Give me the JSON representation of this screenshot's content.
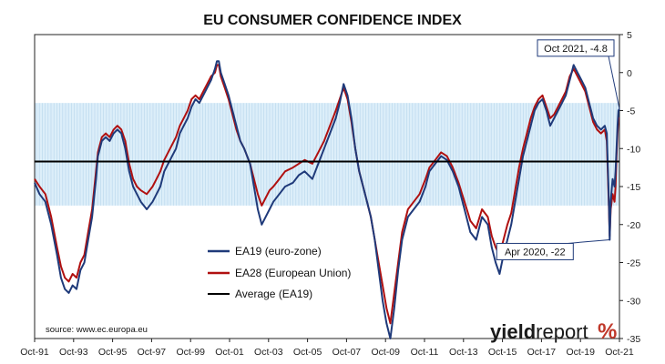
{
  "chart_data": {
    "type": "line",
    "title": "EU CONSUMER CONFIDENCE INDEX",
    "x_tick_labels": [
      "Oct-91",
      "Oct-93",
      "Oct-95",
      "Oct-97",
      "Oct-99",
      "Oct-01",
      "Oct-03",
      "Oct-05",
      "Oct-07",
      "Oct-09",
      "Oct-11",
      "Oct-13",
      "Oct-15",
      "Oct-17",
      "Oct-19",
      "Oct-21"
    ],
    "xlim": [
      1991.75,
      2021.75
    ],
    "ylim": [
      -35,
      5
    ],
    "y_ticks": [
      5,
      0,
      -5,
      -10,
      -15,
      -20,
      -25,
      -30,
      -35
    ],
    "y_axis_side": "right",
    "band": {
      "from": -17.5,
      "to": -4.0,
      "color": "#dceef9"
    },
    "average": {
      "name": "Average (EA19)",
      "value": -11.7,
      "color": "#000000"
    },
    "series": [
      {
        "name": "EA19 (euro-zone)",
        "color": "#1f3a7a",
        "points": [
          [
            1991.75,
            -14.5
          ],
          [
            1992.0,
            -16
          ],
          [
            1992.3,
            -17
          ],
          [
            1992.6,
            -20
          ],
          [
            1992.9,
            -24
          ],
          [
            1993.1,
            -27
          ],
          [
            1993.3,
            -28.5
          ],
          [
            1993.5,
            -29
          ],
          [
            1993.7,
            -28
          ],
          [
            1993.9,
            -28.5
          ],
          [
            1994.1,
            -26
          ],
          [
            1994.3,
            -25
          ],
          [
            1994.5,
            -22
          ],
          [
            1994.7,
            -19
          ],
          [
            1994.9,
            -14
          ],
          [
            1995.0,
            -11
          ],
          [
            1995.2,
            -9
          ],
          [
            1995.4,
            -8.5
          ],
          [
            1995.6,
            -9
          ],
          [
            1995.8,
            -8
          ],
          [
            1996.0,
            -7.5
          ],
          [
            1996.2,
            -8
          ],
          [
            1996.4,
            -10
          ],
          [
            1996.6,
            -13
          ],
          [
            1996.8,
            -15
          ],
          [
            1997.0,
            -16
          ],
          [
            1997.2,
            -17
          ],
          [
            1997.5,
            -18
          ],
          [
            1997.8,
            -17
          ],
          [
            1998.0,
            -16
          ],
          [
            1998.2,
            -15
          ],
          [
            1998.4,
            -13
          ],
          [
            1998.6,
            -12
          ],
          [
            1998.8,
            -11
          ],
          [
            1999.0,
            -10
          ],
          [
            1999.2,
            -8
          ],
          [
            1999.4,
            -7
          ],
          [
            1999.6,
            -6
          ],
          [
            1999.8,
            -4.5
          ],
          [
            2000.0,
            -3.5
          ],
          [
            2000.2,
            -4
          ],
          [
            2000.4,
            -3
          ],
          [
            2000.6,
            -2
          ],
          [
            2000.8,
            -1
          ],
          [
            2001.0,
            0.5
          ],
          [
            2001.1,
            1.5
          ],
          [
            2001.2,
            1.5
          ],
          [
            2001.3,
            0
          ],
          [
            2001.5,
            -1.5
          ],
          [
            2001.7,
            -3
          ],
          [
            2001.9,
            -5
          ],
          [
            2002.1,
            -7
          ],
          [
            2002.3,
            -9
          ],
          [
            2002.5,
            -10
          ],
          [
            2002.8,
            -12
          ],
          [
            2003.0,
            -15
          ],
          [
            2003.2,
            -18
          ],
          [
            2003.4,
            -20
          ],
          [
            2003.6,
            -19
          ],
          [
            2003.8,
            -18
          ],
          [
            2004.0,
            -17
          ],
          [
            2004.3,
            -16
          ],
          [
            2004.6,
            -15
          ],
          [
            2005.0,
            -14.5
          ],
          [
            2005.3,
            -13.5
          ],
          [
            2005.6,
            -13
          ],
          [
            2006.0,
            -14
          ],
          [
            2006.3,
            -12
          ],
          [
            2006.6,
            -10
          ],
          [
            2006.9,
            -8
          ],
          [
            2007.2,
            -6
          ],
          [
            2007.4,
            -4
          ],
          [
            2007.6,
            -1.5
          ],
          [
            2007.8,
            -3
          ],
          [
            2008.0,
            -6
          ],
          [
            2008.2,
            -10
          ],
          [
            2008.4,
            -13
          ],
          [
            2008.6,
            -15
          ],
          [
            2008.8,
            -17
          ],
          [
            2009.0,
            -19
          ],
          [
            2009.2,
            -22
          ],
          [
            2009.4,
            -26
          ],
          [
            2009.6,
            -30
          ],
          [
            2009.8,
            -33
          ],
          [
            2010.0,
            -35
          ],
          [
            2010.2,
            -31
          ],
          [
            2010.4,
            -26
          ],
          [
            2010.6,
            -22
          ],
          [
            2010.9,
            -19
          ],
          [
            2011.2,
            -18
          ],
          [
            2011.5,
            -17
          ],
          [
            2011.8,
            -15
          ],
          [
            2012.0,
            -13
          ],
          [
            2012.3,
            -12
          ],
          [
            2012.6,
            -11
          ],
          [
            2012.9,
            -11.5
          ],
          [
            2013.2,
            -13
          ],
          [
            2013.5,
            -15
          ],
          [
            2013.8,
            -18
          ],
          [
            2014.1,
            -21
          ],
          [
            2014.4,
            -22
          ],
          [
            2014.7,
            -19
          ],
          [
            2015.0,
            -20
          ],
          [
            2015.2,
            -23
          ],
          [
            2015.4,
            -25
          ],
          [
            2015.6,
            -26.5
          ],
          [
            2015.8,
            -24
          ],
          [
            2016.0,
            -22
          ],
          [
            2016.2,
            -20
          ],
          [
            2016.4,
            -17
          ],
          [
            2016.6,
            -14
          ],
          [
            2016.8,
            -11
          ],
          [
            2017.0,
            -9
          ],
          [
            2017.2,
            -7
          ],
          [
            2017.4,
            -5
          ],
          [
            2017.6,
            -4
          ],
          [
            2017.8,
            -3.5
          ],
          [
            2018.0,
            -5
          ],
          [
            2018.2,
            -7
          ],
          [
            2018.4,
            -6
          ],
          [
            2018.6,
            -5
          ],
          [
            2018.8,
            -4
          ],
          [
            2019.0,
            -3
          ],
          [
            2019.2,
            -1
          ],
          [
            2019.4,
            1
          ],
          [
            2019.6,
            0
          ],
          [
            2019.8,
            -1
          ],
          [
            2020.0,
            -2
          ],
          [
            2020.2,
            -4
          ],
          [
            2020.4,
            -6
          ],
          [
            2020.6,
            -7
          ],
          [
            2020.8,
            -7.5
          ],
          [
            2021.0,
            -7
          ],
          [
            2021.1,
            -8
          ],
          [
            2021.2,
            -16
          ],
          [
            2021.25,
            -22
          ],
          [
            2021.3,
            -17
          ],
          [
            2021.4,
            -14
          ],
          [
            2021.5,
            -15
          ],
          [
            2021.55,
            -13
          ],
          [
            2021.6,
            -10
          ],
          [
            2021.65,
            -7
          ],
          [
            2021.7,
            -5
          ],
          [
            2021.75,
            -4.8
          ]
        ]
      },
      {
        "name": "EA28 (European Union)",
        "color": "#b01010",
        "points": [
          [
            1991.75,
            -14
          ],
          [
            1992.0,
            -15
          ],
          [
            1992.3,
            -16
          ],
          [
            1992.6,
            -19
          ],
          [
            1992.9,
            -23
          ],
          [
            1993.1,
            -25.5
          ],
          [
            1993.3,
            -27
          ],
          [
            1993.5,
            -27.5
          ],
          [
            1993.7,
            -26.5
          ],
          [
            1993.9,
            -27
          ],
          [
            1994.1,
            -25
          ],
          [
            1994.3,
            -24
          ],
          [
            1994.5,
            -21
          ],
          [
            1994.7,
            -18
          ],
          [
            1994.9,
            -13
          ],
          [
            1995.0,
            -10.5
          ],
          [
            1995.2,
            -8.5
          ],
          [
            1995.4,
            -8
          ],
          [
            1995.6,
            -8.5
          ],
          [
            1995.8,
            -7.5
          ],
          [
            1996.0,
            -7
          ],
          [
            1996.2,
            -7.5
          ],
          [
            1996.4,
            -9
          ],
          [
            1996.6,
            -12
          ],
          [
            1996.8,
            -14
          ],
          [
            1997.0,
            -15
          ],
          [
            1997.2,
            -15.5
          ],
          [
            1997.5,
            -16
          ],
          [
            1997.8,
            -15
          ],
          [
            1998.0,
            -14
          ],
          [
            1998.2,
            -13
          ],
          [
            1998.4,
            -11.5
          ],
          [
            1998.6,
            -10.5
          ],
          [
            1998.8,
            -9.5
          ],
          [
            1999.0,
            -8.5
          ],
          [
            1999.2,
            -7
          ],
          [
            1999.4,
            -6
          ],
          [
            1999.6,
            -5
          ],
          [
            1999.8,
            -3.5
          ],
          [
            2000.0,
            -3
          ],
          [
            2000.2,
            -3.5
          ],
          [
            2000.4,
            -2.5
          ],
          [
            2000.6,
            -1.5
          ],
          [
            2000.8,
            -0.5
          ],
          [
            2001.0,
            0
          ],
          [
            2001.1,
            1
          ],
          [
            2001.2,
            1
          ],
          [
            2001.3,
            -0.5
          ],
          [
            2001.5,
            -2
          ],
          [
            2001.7,
            -3.5
          ],
          [
            2001.9,
            -5.5
          ],
          [
            2002.1,
            -7.5
          ],
          [
            2002.3,
            -9
          ],
          [
            2002.5,
            -10
          ],
          [
            2002.8,
            -12
          ],
          [
            2003.0,
            -14
          ],
          [
            2003.2,
            -16
          ],
          [
            2003.4,
            -17.5
          ],
          [
            2003.6,
            -16.5
          ],
          [
            2003.8,
            -15.5
          ],
          [
            2004.0,
            -15
          ],
          [
            2004.3,
            -14
          ],
          [
            2004.6,
            -13
          ],
          [
            2005.0,
            -12.5
          ],
          [
            2005.3,
            -12
          ],
          [
            2005.6,
            -11.5
          ],
          [
            2006.0,
            -12
          ],
          [
            2006.3,
            -10.5
          ],
          [
            2006.6,
            -9
          ],
          [
            2006.9,
            -7
          ],
          [
            2007.2,
            -5
          ],
          [
            2007.4,
            -3.5
          ],
          [
            2007.6,
            -2
          ],
          [
            2007.8,
            -3.5
          ],
          [
            2008.0,
            -6.5
          ],
          [
            2008.2,
            -10
          ],
          [
            2008.4,
            -13
          ],
          [
            2008.6,
            -15
          ],
          [
            2008.8,
            -17
          ],
          [
            2009.0,
            -19
          ],
          [
            2009.2,
            -22
          ],
          [
            2009.4,
            -25
          ],
          [
            2009.6,
            -28
          ],
          [
            2009.8,
            -31
          ],
          [
            2010.0,
            -33
          ],
          [
            2010.2,
            -29
          ],
          [
            2010.4,
            -25
          ],
          [
            2010.6,
            -21
          ],
          [
            2010.9,
            -18
          ],
          [
            2011.2,
            -17
          ],
          [
            2011.5,
            -16
          ],
          [
            2011.8,
            -14
          ],
          [
            2012.0,
            -12.5
          ],
          [
            2012.3,
            -11.5
          ],
          [
            2012.6,
            -10.5
          ],
          [
            2012.9,
            -11
          ],
          [
            2013.2,
            -12.5
          ],
          [
            2013.5,
            -14.5
          ],
          [
            2013.8,
            -17
          ],
          [
            2014.1,
            -19.5
          ],
          [
            2014.4,
            -20.5
          ],
          [
            2014.7,
            -18
          ],
          [
            2015.0,
            -19
          ],
          [
            2015.2,
            -21.5
          ],
          [
            2015.4,
            -23
          ],
          [
            2015.6,
            -24
          ],
          [
            2015.8,
            -22
          ],
          [
            2016.0,
            -20
          ],
          [
            2016.2,
            -18.5
          ],
          [
            2016.4,
            -15.5
          ],
          [
            2016.6,
            -12.5
          ],
          [
            2016.8,
            -10
          ],
          [
            2017.0,
            -8
          ],
          [
            2017.2,
            -6
          ],
          [
            2017.4,
            -4.5
          ],
          [
            2017.6,
            -3.5
          ],
          [
            2017.8,
            -3
          ],
          [
            2018.0,
            -4.5
          ],
          [
            2018.2,
            -6
          ],
          [
            2018.4,
            -5.5
          ],
          [
            2018.6,
            -4.5
          ],
          [
            2018.8,
            -3.5
          ],
          [
            2019.0,
            -2.5
          ],
          [
            2019.2,
            -0.5
          ],
          [
            2019.4,
            0.5
          ],
          [
            2019.6,
            -0.5
          ],
          [
            2019.8,
            -1.5
          ],
          [
            2020.0,
            -2.5
          ],
          [
            2020.2,
            -4.5
          ],
          [
            2020.4,
            -6.5
          ],
          [
            2020.6,
            -7.5
          ],
          [
            2020.8,
            -8
          ],
          [
            2021.0,
            -7.5
          ],
          [
            2021.1,
            -9
          ],
          [
            2021.2,
            -17
          ],
          [
            2021.25,
            -21.5
          ],
          [
            2021.3,
            -18
          ],
          [
            2021.4,
            -16
          ],
          [
            2021.5,
            -17
          ],
          [
            2021.55,
            -15
          ],
          [
            2021.6,
            -11
          ],
          [
            2021.65,
            -8
          ],
          [
            2021.7,
            -6
          ],
          [
            2021.75,
            -6
          ]
        ]
      }
    ],
    "legend_position": "lower-center",
    "annotations": [
      {
        "text": "Oct 2021, -4.8",
        "x": 2021.75,
        "y": -4.8,
        "placement": "above-left"
      },
      {
        "text": "Apr 2020, -22",
        "x": 2021.25,
        "y": -22,
        "placement": "below-left"
      }
    ],
    "source": "source: www.ec.europa.eu"
  },
  "brand": {
    "bold": "yield",
    "light": "report",
    "mark": "%",
    "mark_color": "#c0392b",
    "accent_color": "#2e7d32"
  }
}
